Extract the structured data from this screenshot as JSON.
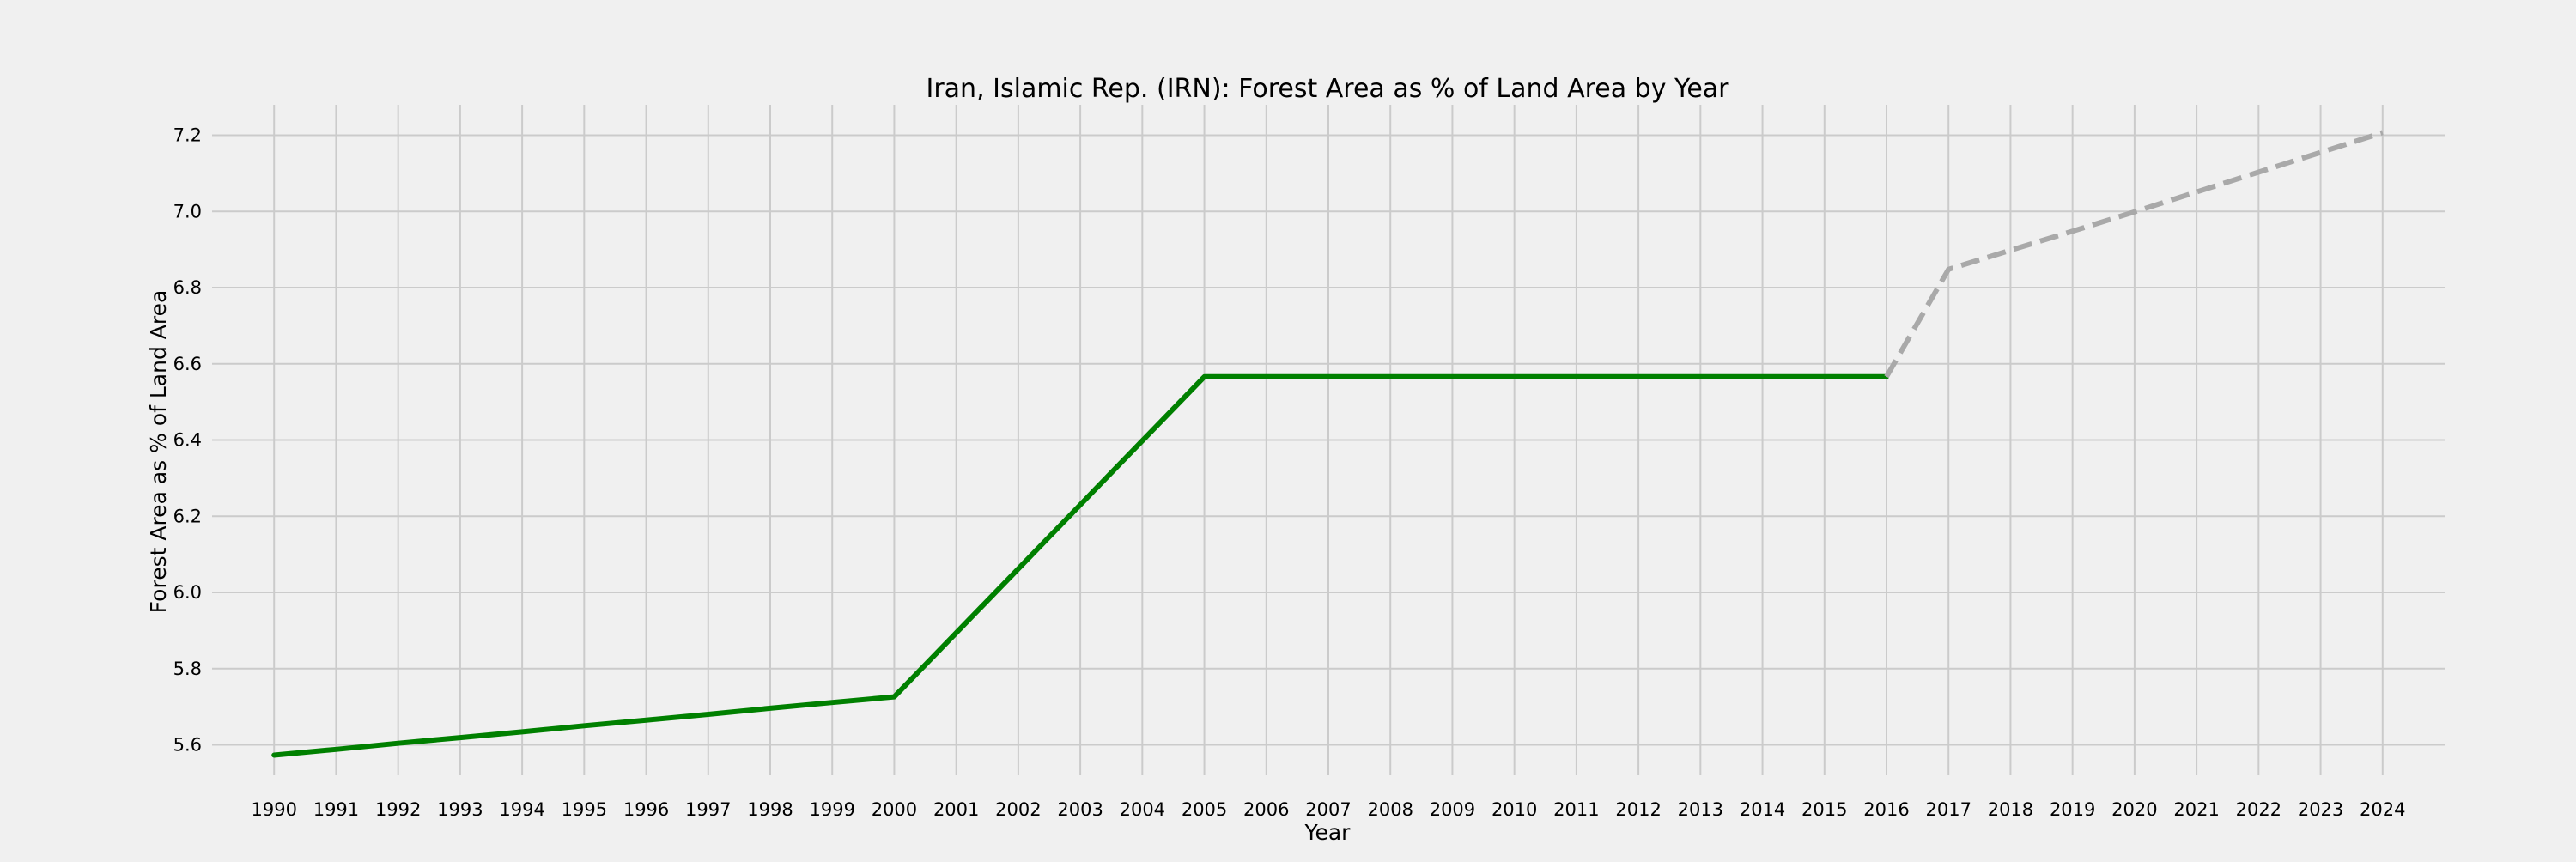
{
  "chart_data": {
    "type": "line",
    "title": "Iran, Islamic Rep. (IRN): Forest Area as % of Land Area by Year",
    "xlabel": "Year",
    "ylabel": "Forest Area as % of Land Area",
    "xlim": [
      1989,
      2025
    ],
    "ylim": [
      5.52,
      7.28
    ],
    "x_ticks": [
      1990,
      1991,
      1992,
      1993,
      1994,
      1995,
      1996,
      1997,
      1998,
      1999,
      2000,
      2001,
      2002,
      2003,
      2004,
      2005,
      2006,
      2007,
      2008,
      2009,
      2010,
      2011,
      2012,
      2013,
      2014,
      2015,
      2016,
      2017,
      2018,
      2019,
      2020,
      2021,
      2022,
      2023,
      2024
    ],
    "y_ticks": [
      "5.6",
      "5.8",
      "6.0",
      "6.2",
      "6.4",
      "6.6",
      "6.8",
      "7.0",
      "7.2"
    ],
    "grid": true,
    "background": "#f0f0f0",
    "series": [
      {
        "style": "solid",
        "color": "#008000",
        "x": [
          1990,
          1991,
          1992,
          1993,
          1994,
          1995,
          1996,
          1997,
          1998,
          1999,
          2000,
          2001,
          2002,
          2003,
          2004,
          2005,
          2006,
          2007,
          2008,
          2009,
          2010,
          2011,
          2012,
          2013,
          2014,
          2015,
          2016
        ],
        "values": [
          5.573,
          5.588,
          5.604,
          5.619,
          5.634,
          5.65,
          5.665,
          5.68,
          5.696,
          5.711,
          5.726,
          5.894,
          6.062,
          6.23,
          6.398,
          6.566,
          6.566,
          6.566,
          6.566,
          6.566,
          6.566,
          6.566,
          6.566,
          6.566,
          6.566,
          6.566,
          6.566
        ]
      },
      {
        "style": "dashed",
        "color": "#a9a9a9",
        "x": [
          2016,
          2017,
          2018,
          2019,
          2020,
          2021,
          2022,
          2023,
          2024
        ],
        "values": [
          6.566,
          6.848,
          6.898,
          6.948,
          6.999,
          7.051,
          7.103,
          7.155,
          7.207
        ]
      }
    ]
  }
}
